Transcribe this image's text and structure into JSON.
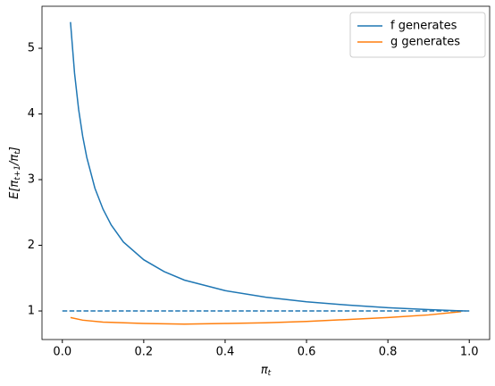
{
  "chart_data": {
    "type": "line",
    "xlabel": [
      "π",
      "t"
    ],
    "ylabel": [
      "E[π",
      "t+1",
      "/π",
      "t",
      "]"
    ],
    "xlim": [
      -0.05,
      1.05
    ],
    "ylim": [
      0.565,
      5.64
    ],
    "xticks": [
      {
        "value": 0,
        "label": "0.0"
      },
      {
        "value": 0.2,
        "label": "0.2"
      },
      {
        "value": 0.4,
        "label": "0.4"
      },
      {
        "value": 0.6,
        "label": "0.6"
      },
      {
        "value": 0.8,
        "label": "0.8"
      },
      {
        "value": 1,
        "label": "1.0"
      }
    ],
    "yticks": [
      1,
      2,
      3,
      4,
      5
    ],
    "legend": "upper right",
    "series": [
      {
        "name": "f generates",
        "color": "#1f77b4",
        "linestyle": "solid",
        "x": [
          0.02,
          0.03,
          0.04,
          0.05,
          0.06,
          0.08,
          0.1,
          0.12,
          0.15,
          0.2,
          0.25,
          0.3,
          0.4,
          0.5,
          0.6,
          0.7,
          0.8,
          0.9,
          0.99
        ],
        "values": [
          5.4,
          4.62,
          4.07,
          3.66,
          3.34,
          2.87,
          2.55,
          2.31,
          2.05,
          1.78,
          1.6,
          1.47,
          1.31,
          1.21,
          1.14,
          1.09,
          1.05,
          1.02,
          1.0
        ]
      },
      {
        "name": "g generates",
        "color": "#ff7f0e",
        "linestyle": "solid",
        "x": [
          0.02,
          0.05,
          0.1,
          0.2,
          0.3,
          0.4,
          0.5,
          0.6,
          0.7,
          0.8,
          0.9,
          0.98
        ],
        "values": [
          0.9,
          0.86,
          0.83,
          0.81,
          0.8,
          0.81,
          0.82,
          0.84,
          0.87,
          0.9,
          0.94,
          0.99
        ]
      },
      {
        "color": "#1f77b4",
        "linestyle": "dashed",
        "x": [
          0,
          1
        ],
        "values": [
          1,
          1
        ]
      }
    ]
  }
}
